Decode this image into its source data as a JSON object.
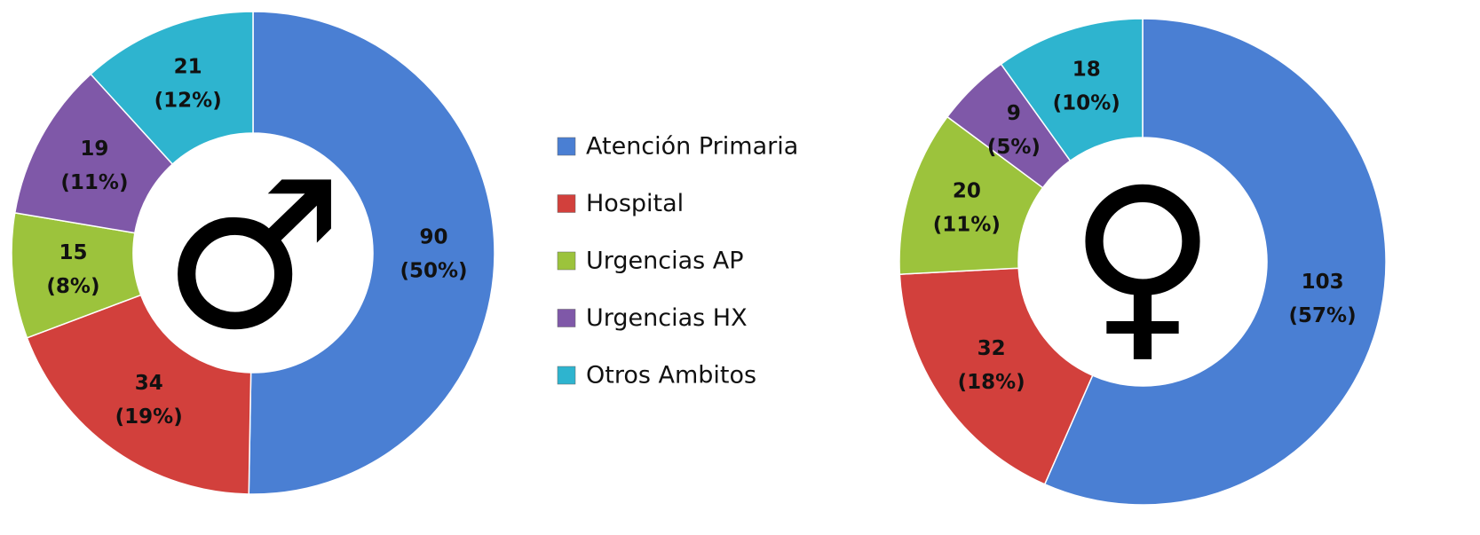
{
  "legend": {
    "labels": [
      "Atención Primaria",
      "Hospital",
      "Urgencias AP",
      "Urgencias HX",
      "Otros Ambitos"
    ],
    "colors": [
      "#4a7fd3",
      "#d2403c",
      "#9cc33c",
      "#7f58a8",
      "#2eb4cf"
    ]
  },
  "chart_data": [
    {
      "type": "donut",
      "center_label": "♂",
      "values": [
        90,
        34,
        15,
        19,
        21
      ],
      "percentages": [
        50,
        19,
        8,
        11,
        12
      ],
      "percentage_labels": [
        "(50%)",
        "(19%)",
        "(8%)",
        "(11%)",
        "(12%)"
      ]
    },
    {
      "type": "donut",
      "center_label": "♀",
      "values": [
        103,
        32,
        20,
        9,
        18
      ],
      "percentages": [
        57,
        18,
        11,
        5,
        10
      ],
      "percentage_labels": [
        "(57%)",
        "(18%)",
        "(11%)",
        "(5%)",
        "(10%)"
      ]
    }
  ]
}
